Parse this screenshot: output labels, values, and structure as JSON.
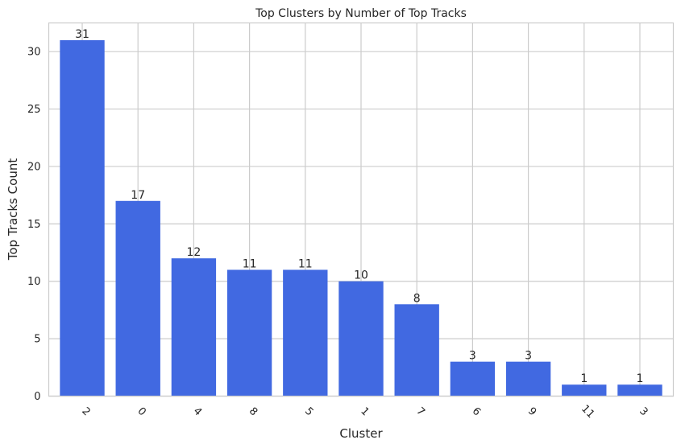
{
  "chart_data": {
    "type": "bar",
    "title": "Top Clusters by Number of Top Tracks",
    "xlabel": "Cluster",
    "ylabel": "Top Tracks Count",
    "categories": [
      "2",
      "0",
      "4",
      "8",
      "5",
      "1",
      "7",
      "6",
      "9",
      "11",
      "3"
    ],
    "values": [
      31,
      17,
      12,
      11,
      11,
      10,
      8,
      3,
      3,
      1,
      1
    ],
    "ylim": [
      0,
      32.5
    ],
    "yticks": [
      0,
      5,
      10,
      15,
      20,
      25,
      30
    ],
    "grid": true,
    "bar_color": "#4169e1",
    "xtick_rotation": 45
  }
}
